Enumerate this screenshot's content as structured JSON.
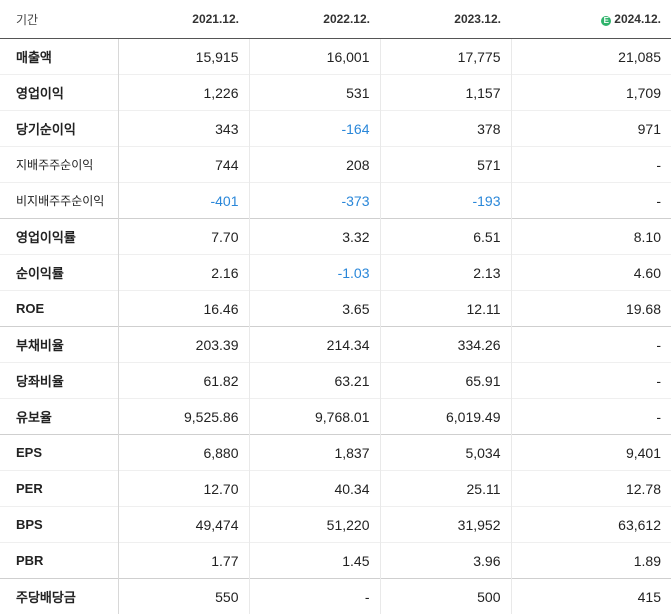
{
  "header": {
    "label": "기간",
    "periods": [
      "2021.12.",
      "2022.12.",
      "2023.12.",
      "2024.12."
    ],
    "estimate_marker": "E"
  },
  "rows": [
    {
      "label": "매출액",
      "values": [
        "15,915",
        "16,001",
        "17,775",
        "21,085"
      ]
    },
    {
      "label": "영업이익",
      "values": [
        "1,226",
        "531",
        "1,157",
        "1,709"
      ]
    },
    {
      "label": "당기순이익",
      "values": [
        "343",
        "-164",
        "378",
        "971"
      ]
    },
    {
      "label": "지배주주순이익",
      "values": [
        "744",
        "208",
        "571",
        "-"
      ]
    },
    {
      "label": "비지배주주순이익",
      "values": [
        "-401",
        "-373",
        "-193",
        "-"
      ]
    },
    {
      "label": "영업이익률",
      "values": [
        "7.70",
        "3.32",
        "6.51",
        "8.10"
      ]
    },
    {
      "label": "순이익률",
      "values": [
        "2.16",
        "-1.03",
        "2.13",
        "4.60"
      ]
    },
    {
      "label": "ROE",
      "values": [
        "16.46",
        "3.65",
        "12.11",
        "19.68"
      ]
    },
    {
      "label": "부채비율",
      "values": [
        "203.39",
        "214.34",
        "334.26",
        "-"
      ]
    },
    {
      "label": "당좌비율",
      "values": [
        "61.82",
        "63.21",
        "65.91",
        "-"
      ]
    },
    {
      "label": "유보율",
      "values": [
        "9,525.86",
        "9,768.01",
        "6,019.49",
        "-"
      ]
    },
    {
      "label": "EPS",
      "values": [
        "6,880",
        "1,837",
        "5,034",
        "9,401"
      ]
    },
    {
      "label": "PER",
      "values": [
        "12.70",
        "40.34",
        "25.11",
        "12.78"
      ]
    },
    {
      "label": "BPS",
      "values": [
        "49,474",
        "51,220",
        "31,952",
        "63,612"
      ]
    },
    {
      "label": "PBR",
      "values": [
        "1.77",
        "1.45",
        "3.96",
        "1.89"
      ]
    },
    {
      "label": "주당배당금",
      "values": [
        "550",
        "-",
        "500",
        "415"
      ]
    }
  ],
  "colors": {
    "negative": "#2a87d9",
    "estimate_badge": "#2fb36b"
  }
}
